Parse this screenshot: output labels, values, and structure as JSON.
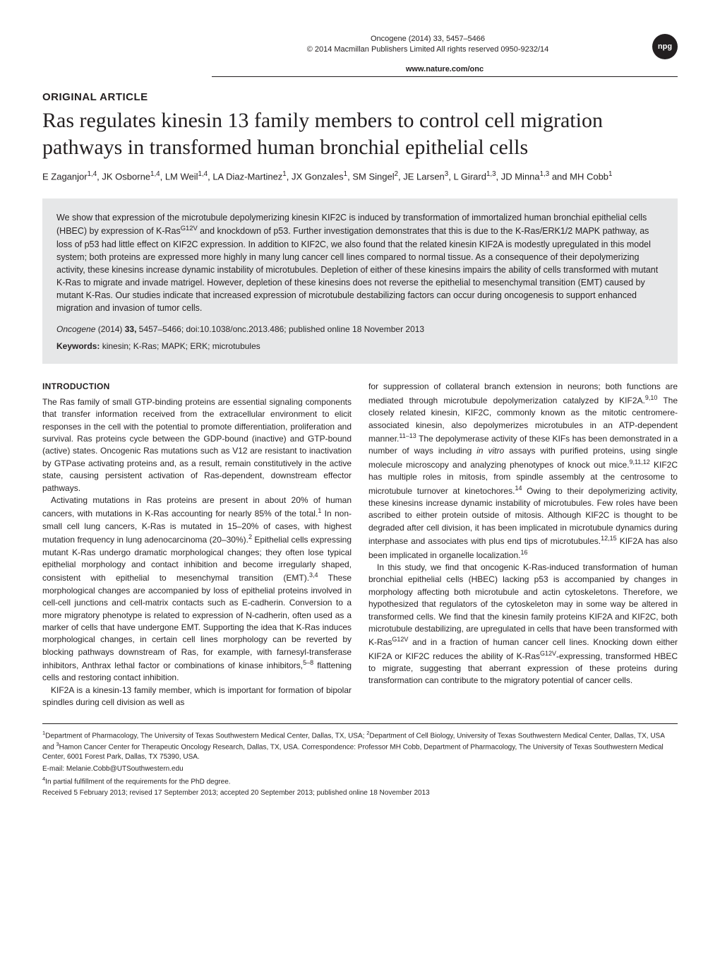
{
  "header": {
    "journal_line1": "Oncogene (2014) 33, 5457–5466",
    "journal_line2": "© 2014 Macmillan Publishers Limited   All rights reserved 0950-9232/14",
    "website": "www.nature.com/onc",
    "badge": "npg"
  },
  "article": {
    "type": "ORIGINAL ARTICLE",
    "title": "Ras regulates kinesin 13 family members to control cell migration pathways in transformed human bronchial epithelial cells",
    "authors": "E Zaganjor<sup>1,4</sup>, JK Osborne<sup>1,4</sup>, LM Weil<sup>1,4</sup>, LA Diaz-Martinez<sup>1</sup>, JX Gonzales<sup>1</sup>, SM Singel<sup>2</sup>, JE Larsen<sup>3</sup>, L Girard<sup>1,3</sup>, JD Minna<sup>1,3</sup> and MH Cobb<sup>1</sup>"
  },
  "abstract": {
    "text": "We show that expression of the microtubule depolymerizing kinesin KIF2C is induced by transformation of immortalized human bronchial epithelial cells (HBEC) by expression of K-Ras<sup>G12V</sup> and knockdown of p53. Further investigation demonstrates that this is due to the K-Ras/ERK1/2 MAPK pathway, as loss of p53 had little effect on KIF2C expression. In addition to KIF2C, we also found that the related kinesin KIF2A is modestly upregulated in this model system; both proteins are expressed more highly in many lung cancer cell lines compared to normal tissue. As a consequence of their depolymerizing activity, these kinesins increase dynamic instability of microtubules. Depletion of either of these kinesins impairs the ability of cells transformed with mutant K-Ras to migrate and invade matrigel. However, depletion of these kinesins does not reverse the epithelial to mesenchymal transition (EMT) caused by mutant K-Ras. Our studies indicate that increased expression of microtubule destabilizing factors can occur during oncogenesis to support enhanced migration and invasion of tumor cells.",
    "citation_journal": "Oncogene",
    "citation_details": " (2014) <b>33,</b> 5457–5466; doi:10.1038/onc.2013.486; published online 18 November 2013",
    "keywords_label": "Keywords:",
    "keywords_text": " kinesin; K-Ras; MAPK; ERK; microtubules"
  },
  "body": {
    "intro_heading": "INTRODUCTION",
    "col1_p1": "The Ras family of small GTP-binding proteins are essential signaling components that transfer information received from the extracellular environment to elicit responses in the cell with the potential to promote differentiation, proliferation and survival. Ras proteins cycle between the GDP-bound (inactive) and GTP-bound (active) states. Oncogenic Ras mutations such as V12 are resistant to inactivation by GTPase activating proteins and, as a result, remain constitutively in the active state, causing persistent activation of Ras-dependent, downstream effector pathways.",
    "col1_p2": "Activating mutations in Ras proteins are present in about 20% of human cancers, with mutations in K-Ras accounting for nearly 85% of the total.<sup>1</sup> In non-small cell lung cancers, K-Ras is mutated in 15–20% of cases, with highest mutation frequency in lung adenocarcinoma (20–30%).<sup>2</sup> Epithelial cells expressing mutant K-Ras undergo dramatic morphological changes; they often lose typical epithelial morphology and contact inhibition and become irregularly shaped, consistent with epithelial to mesenchymal transition (EMT).<sup>3,4</sup> These morphological changes are accompanied by loss of epithelial proteins involved in cell-cell junctions and cell-matrix contacts such as E-cadherin. Conversion to a more migratory phenotype is related to expression of N-cadherin, often used as a marker of cells that have undergone EMT. Supporting the idea that K-Ras induces morphological changes, in certain cell lines morphology can be reverted by blocking pathways downstream of Ras, for example, with farnesyl-transferase inhibitors, Anthrax lethal factor or combinations of kinase inhibitors,<sup>5–8</sup> flattening cells and restoring contact inhibition.",
    "col1_p3": "KIF2A is a kinesin-13 family member, which is important for formation of bipolar spindles during cell division as well as",
    "col2_p1": "for suppression of collateral branch extension in neurons; both functions are mediated through microtubule depolymerization catalyzed by KIF2A.<sup>9,10</sup> The closely related kinesin, KIF2C, commonly known as the mitotic centromere-associated kinesin, also depolymerizes microtubules in an ATP-dependent manner.<sup>11–13</sup> The depolymerase activity of these KIFs has been demonstrated in a number of ways including <i>in vitro</i> assays with purified proteins, using single molecule microscopy and analyzing phenotypes of knock out mice.<sup>9,11,12</sup> KIF2C has multiple roles in mitosis, from spindle assembly at the centrosome to microtubule turnover at kinetochores.<sup>14</sup> Owing to their depolymerizing activity, these kinesins increase dynamic instability of microtubules. Few roles have been ascribed to either protein outside of mitosis. Although KIF2C is thought to be degraded after cell division, it has been implicated in microtubule dynamics during interphase and associates with plus end tips of microtubules.<sup>12,15</sup> KIF2A has also been implicated in organelle localization.<sup>16</sup>",
    "col2_p2": "In this study, we find that oncogenic K-Ras-induced transformation of human bronchial epithelial cells (HBEC) lacking p53 is accompanied by changes in morphology affecting both microtubule and actin cytoskeletons. Therefore, we hypothesized that regulators of the cytoskeleton may in some way be altered in transformed cells. We find that the kinesin family proteins KIF2A and KIF2C, both microtubule destabilizing, are upregulated in cells that have been transformed with K-Ras<sup>G12V</sup> and in a fraction of human cancer cell lines. Knocking down either KIF2A or KIF2C reduces the ability of K-Ras<sup>G12V</sup>-expressing, transformed HBEC to migrate, suggesting that aberrant expression of these proteins during transformation can contribute to the migratory potential of cancer cells."
  },
  "footer": {
    "affiliations": "<sup>1</sup>Department of Pharmacology, The University of Texas Southwestern Medical Center, Dallas, TX, USA; <sup>2</sup>Department of Cell Biology, University of Texas Southwestern Medical Center, Dallas, TX, USA and <sup>3</sup>Hamon Cancer Center for Therapeutic Oncology Research, Dallas, TX, USA. Correspondence: Professor MH Cobb, Department of Pharmacology, The University of Texas Southwestern Medical Center, 6001 Forest Park, Dallas, TX 75390, USA.",
    "email": "E-mail: Melanie.Cobb@UTSouthwestern.edu",
    "footnote": "<sup>4</sup>In partial fulfillment of the requirements for the PhD degree.",
    "received": "Received 5 February 2013; revised 17 September 2013; accepted 20 September 2013; published online 18 November 2013"
  },
  "colors": {
    "text": "#231f20",
    "abstract_bg": "#e6e7e8",
    "background": "#ffffff"
  }
}
